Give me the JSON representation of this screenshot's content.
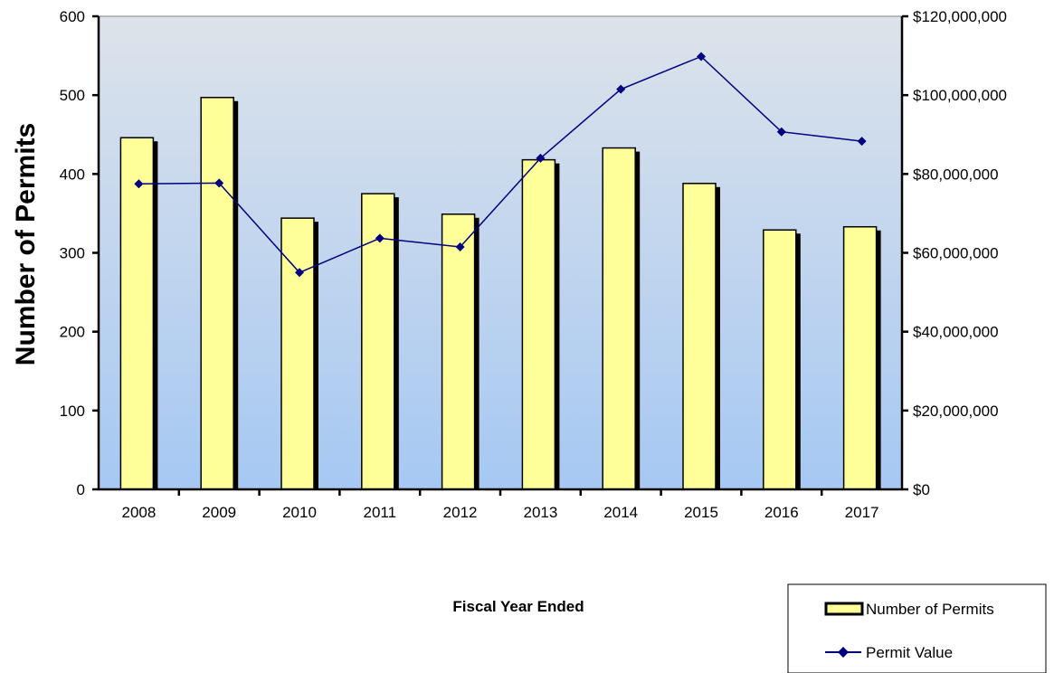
{
  "chart_data": {
    "type": "bar",
    "categories": [
      "2008",
      "2009",
      "2010",
      "2011",
      "2012",
      "2013",
      "2014",
      "2015",
      "2016",
      "2017"
    ],
    "series": [
      {
        "name": "Number of Permits",
        "type": "bar",
        "axis": "left",
        "color": "#FFFF99",
        "values": [
          446,
          497,
          344,
          375,
          349,
          418,
          433,
          388,
          329,
          333
        ]
      },
      {
        "name": "Permit Value",
        "type": "line",
        "axis": "right",
        "color": "#000080",
        "values": [
          77500000,
          77700000,
          55000000,
          63700000,
          61500000,
          84000000,
          101500000,
          109800000,
          90700000,
          88300000
        ]
      }
    ],
    "xlabel": "Fiscal Year Ended",
    "ylabel": "Number of Permits",
    "ylim": [
      0,
      600
    ],
    "y_ticks": [
      0,
      100,
      200,
      300,
      400,
      500,
      600
    ],
    "y_tick_labels": [
      "0",
      "100",
      "200",
      "300",
      "400",
      "500",
      "600"
    ],
    "y2lim": [
      0,
      120000000
    ],
    "y2_ticks": [
      0,
      20000000,
      40000000,
      60000000,
      80000000,
      100000000,
      120000000
    ],
    "y2_tick_labels": [
      "$0",
      "$20,000,000",
      "$40,000,000",
      "$60,000,000",
      "$80,000,000",
      "$100,000,000",
      "$120,000,000"
    ],
    "grid": false,
    "legend_position": "bottom-right",
    "plot_background": [
      "#DDE3EA",
      "#A6C8F2"
    ]
  }
}
